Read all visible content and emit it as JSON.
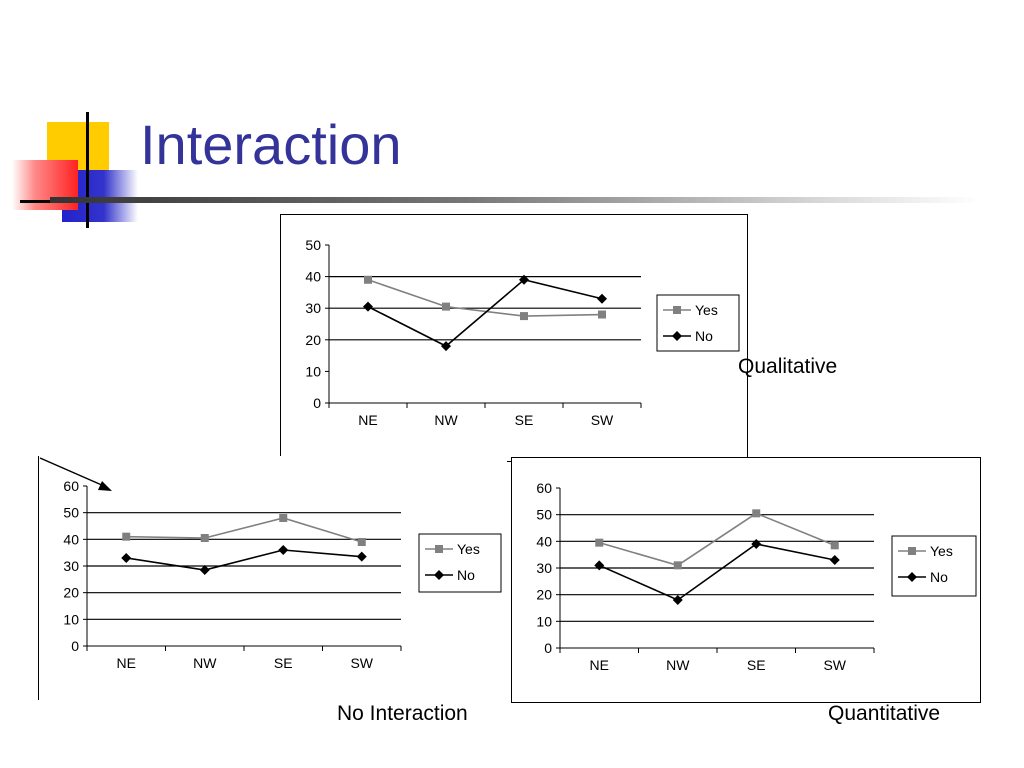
{
  "slide": {
    "title": "Interaction"
  },
  "captions": {
    "top": "Qualitative",
    "left": "No Interaction",
    "right": "Quantitative"
  },
  "colors": {
    "title": "#333399",
    "yes_series": "#808080",
    "no_series": "#000000",
    "deco_yellow": "#ffcc00",
    "deco_red": "#ff3333",
    "deco_blue": "#3333cc"
  },
  "chart_data": [
    {
      "id": "qualitative",
      "type": "line",
      "categories": [
        "NE",
        "NW",
        "SE",
        "SW"
      ],
      "ylim": [
        0,
        50
      ],
      "yticks": [
        0,
        10,
        20,
        30,
        40,
        50
      ],
      "grid_values": [
        20,
        30,
        40
      ],
      "legend_position": "right",
      "series": [
        {
          "name": "Yes",
          "marker": "square",
          "values": [
            39,
            30.5,
            27.5,
            28
          ]
        },
        {
          "name": "No",
          "marker": "diamond",
          "values": [
            30.5,
            18,
            39,
            33
          ]
        }
      ]
    },
    {
      "id": "no-interaction",
      "type": "line",
      "categories": [
        "NE",
        "NW",
        "SE",
        "SW"
      ],
      "ylim": [
        0,
        60
      ],
      "yticks": [
        0,
        10,
        20,
        30,
        40,
        50,
        60
      ],
      "grid_values": [
        10,
        20,
        30,
        40,
        50
      ],
      "legend_position": "right",
      "series": [
        {
          "name": "Yes",
          "marker": "square",
          "values": [
            41,
            40.5,
            48,
            39
          ]
        },
        {
          "name": "No",
          "marker": "diamond",
          "values": [
            33,
            28.5,
            36,
            33.5
          ]
        }
      ]
    },
    {
      "id": "quantitative",
      "type": "line",
      "categories": [
        "NE",
        "NW",
        "SE",
        "SW"
      ],
      "ylim": [
        0,
        60
      ],
      "yticks": [
        0,
        10,
        20,
        30,
        40,
        50,
        60
      ],
      "grid_values": [
        10,
        20,
        30,
        40,
        50
      ],
      "legend_position": "right",
      "series": [
        {
          "name": "Yes",
          "marker": "square",
          "values": [
            39.5,
            31,
            50.5,
            38.5
          ]
        },
        {
          "name": "No",
          "marker": "diamond",
          "values": [
            31,
            18,
            39,
            33
          ]
        }
      ]
    }
  ]
}
